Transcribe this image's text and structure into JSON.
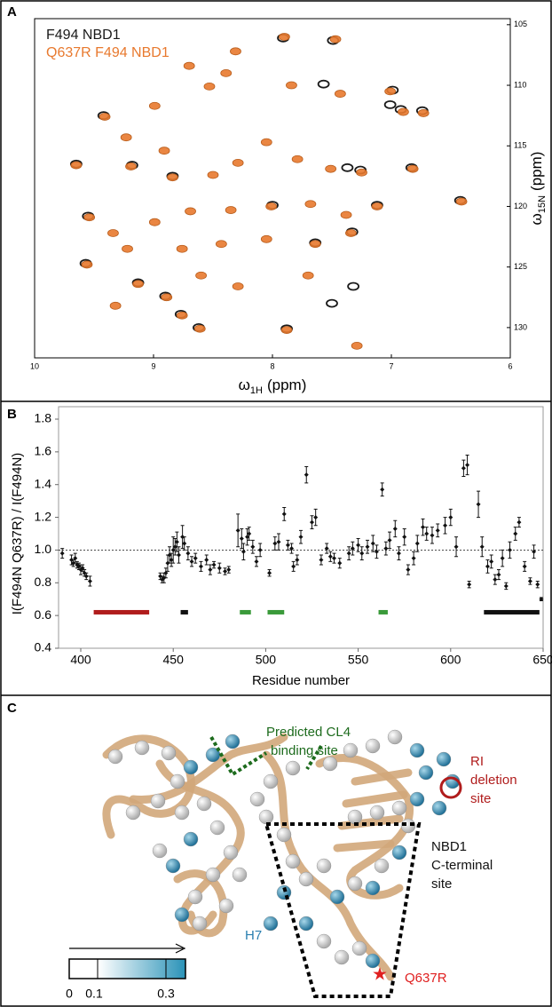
{
  "chart_data": [
    {
      "type": "spectrum",
      "panel": "A",
      "xlabel": [
        "ω",
        "1H",
        "(ppm)"
      ],
      "ylabel": [
        "ω",
        "15N",
        "(ppm)"
      ],
      "xlim": [
        10,
        6
      ],
      "xticks": [
        10,
        9,
        8,
        7,
        6
      ],
      "ylim": [
        104.5,
        132.5
      ],
      "yticks": [
        105,
        110,
        115,
        120,
        125,
        130
      ],
      "series": [
        {
          "name": "F494 NBD1",
          "color": "#1a1a1a",
          "x": [
            7.49,
            7.91,
            6.99,
            7.01,
            6.92,
            6.74,
            7.57,
            9.42,
            9.65,
            9.18,
            8.84,
            7.37,
            7.26,
            6.83,
            6.42,
            9.55,
            8.0,
            7.12,
            9.57,
            7.64,
            7.33,
            9.13,
            7.5,
            7.32,
            8.9,
            8.77,
            7.88,
            8.62
          ],
          "values": [
            106.3,
            106.1,
            110.4,
            111.6,
            112.0,
            112.1,
            109.9,
            112.5,
            116.5,
            116.6,
            117.5,
            116.8,
            117.0,
            116.8,
            119.5,
            120.8,
            119.9,
            119.9,
            124.7,
            123.0,
            122.1,
            126.3,
            128.0,
            126.6,
            127.4,
            128.9,
            130.1,
            130.0
          ]
        },
        {
          "name": "Q637R F494 NBD1",
          "color": "#e8792e",
          "x": [
            7.47,
            7.9,
            8.31,
            8.7,
            8.39,
            8.53,
            7.84,
            7.43,
            7.01,
            6.9,
            6.73,
            8.99,
            9.41,
            9.23,
            9.65,
            8.91,
            9.19,
            8.84,
            8.5,
            8.29,
            8.05,
            7.79,
            7.51,
            7.25,
            6.82,
            6.41,
            9.54,
            9.34,
            8.99,
            8.69,
            8.35,
            8.01,
            7.68,
            7.38,
            7.12,
            9.56,
            9.22,
            8.76,
            8.43,
            8.05,
            7.64,
            7.34,
            9.13,
            8.6,
            8.29,
            7.7,
            8.89,
            9.32,
            8.76,
            8.61,
            7.88,
            7.29
          ],
          "values": [
            106.2,
            106.0,
            107.2,
            108.4,
            109.0,
            110.1,
            110.0,
            110.7,
            110.5,
            112.2,
            112.3,
            111.7,
            112.6,
            114.3,
            116.6,
            115.4,
            116.7,
            117.6,
            117.4,
            116.4,
            114.7,
            116.1,
            116.9,
            117.2,
            116.9,
            119.6,
            120.9,
            122.2,
            121.3,
            120.4,
            120.3,
            120.0,
            119.8,
            120.7,
            120.0,
            124.8,
            123.5,
            123.5,
            123.1,
            122.7,
            123.1,
            122.2,
            126.4,
            125.7,
            126.6,
            125.7,
            127.5,
            128.2,
            129.0,
            130.1,
            130.2,
            131.5
          ]
        }
      ]
    },
    {
      "type": "errorbar",
      "panel": "B",
      "xlabel": "Residue number",
      "ylabel": "I(F494N Q637R) / I(F494N)",
      "xlim": [
        388,
        650
      ],
      "xticks": [
        400,
        450,
        500,
        550,
        600,
        650
      ],
      "ylim": [
        0.4,
        1.8
      ],
      "yticks": [
        0.4,
        0.6,
        0.8,
        {
          "value": 1,
          "label": "1.0"
        },
        1.2,
        1.4,
        1.6,
        1.8
      ],
      "ref_line": 1,
      "color": "#111111",
      "x": [
        390,
        395,
        396,
        397,
        398,
        399,
        400,
        401,
        402,
        403,
        405,
        443,
        444,
        445,
        446,
        447,
        448,
        449,
        450,
        451,
        452,
        453,
        455,
        456,
        458,
        460,
        462,
        465,
        468,
        470,
        472,
        475,
        478,
        480,
        485,
        487,
        488,
        490,
        491,
        493,
        495,
        497,
        502,
        505,
        507,
        510,
        512,
        514,
        515,
        517,
        519,
        522,
        525,
        527,
        530,
        533,
        535,
        537,
        540,
        545,
        547,
        550,
        552,
        555,
        558,
        560,
        563,
        565,
        567,
        570,
        572,
        575,
        577,
        580,
        582,
        585,
        587,
        590,
        593,
        597,
        600,
        603,
        607,
        609,
        610,
        615,
        617,
        620,
        622,
        624,
        626,
        628,
        630,
        632,
        635,
        637,
        640,
        643,
        645,
        647,
        649
      ],
      "values": [
        0.98,
        0.94,
        0.92,
        0.95,
        0.91,
        0.9,
        0.88,
        0.89,
        0.86,
        0.84,
        0.81,
        0.84,
        0.82,
        0.83,
        0.86,
        0.92,
        0.97,
        0.94,
        1.0,
        1.02,
        1.05,
        0.97,
        1.08,
        1.04,
        0.98,
        0.93,
        0.95,
        0.9,
        0.94,
        0.88,
        0.91,
        0.89,
        0.87,
        0.88,
        1.12,
        1.07,
        0.99,
        1.08,
        1.1,
        1.02,
        0.93,
        1.0,
        0.86,
        1.04,
        1.05,
        1.22,
        1.03,
        1.01,
        0.9,
        0.94,
        1.08,
        1.46,
        1.17,
        1.2,
        0.94,
        1.01,
        0.96,
        0.95,
        0.92,
        0.98,
        1.01,
        1.03,
        0.98,
        1.02,
        1.04,
        0.99,
        1.37,
        1.01,
        1.06,
        1.13,
        0.98,
        1.08,
        0.88,
        0.95,
        1.04,
        1.14,
        1.1,
        1.09,
        1.12,
        1.15,
        1.2,
        1.02,
        1.5,
        1.52,
        0.79,
        1.28,
        1.02,
        0.9,
        0.93,
        0.82,
        0.85,
        0.95,
        0.78,
        1.0,
        1.1,
        1.17,
        0.9,
        0.81,
        0.99,
        0.79,
        0.7
      ],
      "errors": [
        0.03,
        0.03,
        0.02,
        0.03,
        0.02,
        0.02,
        0.03,
        0.02,
        0.02,
        0.02,
        0.03,
        0.02,
        0.02,
        0.03,
        0.03,
        0.05,
        0.05,
        0.04,
        0.08,
        0.05,
        0.06,
        0.05,
        0.07,
        0.04,
        0.04,
        0.03,
        0.03,
        0.03,
        0.03,
        0.03,
        0.02,
        0.03,
        0.02,
        0.02,
        0.1,
        0.06,
        0.05,
        0.05,
        0.04,
        0.04,
        0.03,
        0.04,
        0.02,
        0.04,
        0.05,
        0.04,
        0.03,
        0.03,
        0.03,
        0.03,
        0.04,
        0.05,
        0.04,
        0.05,
        0.03,
        0.03,
        0.03,
        0.03,
        0.03,
        0.04,
        0.04,
        0.04,
        0.04,
        0.04,
        0.05,
        0.04,
        0.04,
        0.04,
        0.05,
        0.05,
        0.04,
        0.05,
        0.03,
        0.04,
        0.05,
        0.05,
        0.04,
        0.05,
        0.04,
        0.05,
        0.05,
        0.06,
        0.05,
        0.06,
        0.02,
        0.08,
        0.06,
        0.04,
        0.04,
        0.03,
        0.03,
        0.05,
        0.02,
        0.05,
        0.04,
        0.03,
        0.03,
        0.02,
        0.04,
        0.02,
        0.01
      ],
      "segment_y": 0.62,
      "segments": [
        {
          "color": "#b01c1c",
          "x": [
            407,
            437
          ]
        },
        {
          "color": "#111111",
          "x": [
            454,
            458
          ]
        },
        {
          "color": "#3a9a3a",
          "x": [
            486,
            492
          ]
        },
        {
          "color": "#3a9a3a",
          "x": [
            501,
            510
          ]
        },
        {
          "color": "#3a9a3a",
          "x": [
            561,
            566
          ]
        },
        {
          "color": "#111111",
          "x": [
            618,
            648
          ]
        }
      ]
    }
  ],
  "figure_c": {
    "panel": "C",
    "cl4": [
      "Predicted CL4",
      "binding  site"
    ],
    "ri": [
      "RI",
      "deletion",
      "site"
    ],
    "cterm": [
      "NBD1",
      "C-terminal",
      "site"
    ],
    "h7": "H7",
    "mutation": "Q637R",
    "colorbar_ticks": [
      0,
      0.1,
      0.3
    ]
  }
}
